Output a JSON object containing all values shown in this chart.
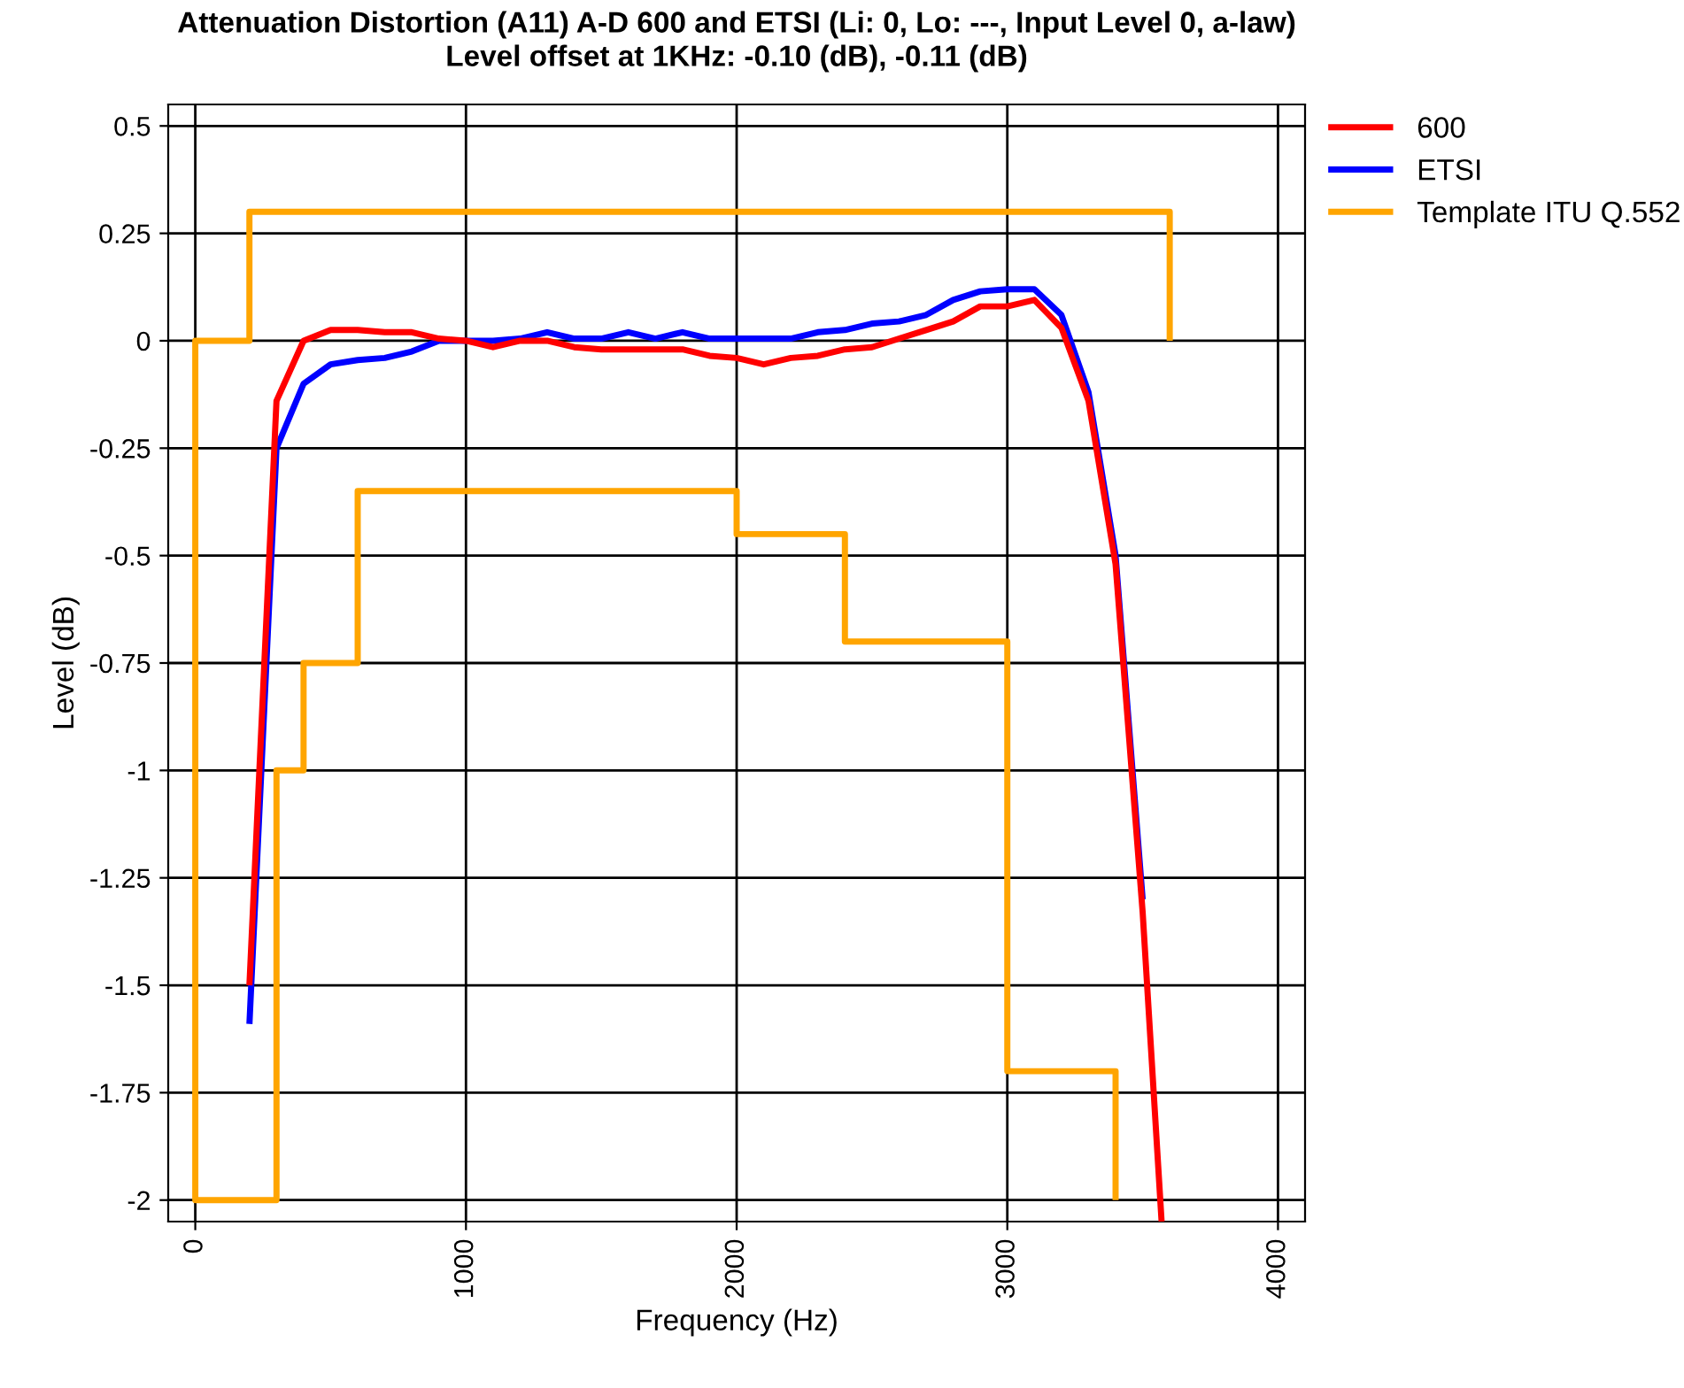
{
  "chart_data": {
    "type": "line",
    "title": "Attenuation Distortion (A11) A-D 600 and ETSI (Li: 0, Lo: ---, Input Level 0, a-law)",
    "subtitle": "Level offset at 1KHz: -0.10 (dB), -0.11 (dB)",
    "xlabel": "Frequency (Hz)",
    "ylabel": "Level (dB)",
    "xlim": [
      -100,
      4100
    ],
    "ylim": [
      -2.05,
      0.55
    ],
    "xticks": [
      0,
      1000,
      2000,
      3000,
      4000
    ],
    "yticks": [
      {
        "value": 0.5,
        "label": "0.5"
      },
      {
        "value": 0.25,
        "label": "0.25"
      },
      {
        "value": 0,
        "label": "0"
      },
      {
        "value": -0.25,
        "label": "-0.25"
      },
      {
        "value": -0.5,
        "label": "-0.5"
      },
      {
        "value": -0.75,
        "label": "-0.75"
      },
      {
        "value": -1,
        "label": "-1"
      },
      {
        "value": -1.25,
        "label": "-1.25"
      },
      {
        "value": -1.5,
        "label": "-1.5"
      },
      {
        "value": -1.75,
        "label": "-1.75"
      },
      {
        "value": -2,
        "label": "-2"
      }
    ],
    "grid": true,
    "legend": "top right",
    "series": [
      {
        "name": "600",
        "color": "#ff0000",
        "x": [
          200,
          300,
          400,
          500,
          600,
          700,
          800,
          900,
          1000,
          1100,
          1200,
          1300,
          1400,
          1500,
          1600,
          1700,
          1800,
          1900,
          2000,
          2100,
          2200,
          2300,
          2400,
          2500,
          2600,
          2700,
          2800,
          2900,
          3000,
          3100,
          3200,
          3300,
          3400,
          3500,
          3570
        ],
        "values": [
          -1.5,
          -0.14,
          0,
          0.025,
          0.025,
          0.02,
          0.02,
          0.005,
          0,
          -0.015,
          0,
          0,
          -0.015,
          -0.02,
          -0.02,
          -0.02,
          -0.02,
          -0.035,
          -0.04,
          -0.055,
          -0.04,
          -0.035,
          -0.02,
          -0.015,
          0.005,
          0.025,
          0.045,
          0.08,
          0.08,
          0.095,
          0.03,
          -0.14,
          -0.52,
          -1.33,
          -2.05
        ]
      },
      {
        "name": "ETSI",
        "color": "#0000ff",
        "x": [
          200,
          300,
          400,
          500,
          600,
          700,
          800,
          900,
          1000,
          1100,
          1200,
          1300,
          1400,
          1500,
          1600,
          1700,
          1800,
          1900,
          2000,
          2100,
          2200,
          2300,
          2400,
          2500,
          2600,
          2700,
          2800,
          2900,
          3000,
          3100,
          3200,
          3300,
          3400,
          3500
        ],
        "values": [
          -1.59,
          -0.25,
          -0.1,
          -0.055,
          -0.045,
          -0.04,
          -0.025,
          0,
          0,
          0,
          0.005,
          0.02,
          0.005,
          0.005,
          0.02,
          0.005,
          0.02,
          0.005,
          0.005,
          0.005,
          0.005,
          0.02,
          0.025,
          0.04,
          0.045,
          0.06,
          0.095,
          0.115,
          0.12,
          0.12,
          0.06,
          -0.12,
          -0.5,
          -1.3
        ]
      },
      {
        "name": "Template ITU Q.552",
        "color": "#ffa500",
        "x": [
          3400,
          3400,
          3000,
          3000,
          2400,
          2400,
          2000,
          2000,
          600,
          600,
          400,
          400,
          300,
          300,
          0,
          0,
          200,
          200,
          3600,
          3600
        ],
        "values": [
          -2,
          -1.7,
          -1.7,
          -0.7,
          -0.7,
          -0.45,
          -0.45,
          -0.35,
          -0.35,
          -0.75,
          -0.75,
          -1,
          -1,
          -2,
          -2,
          0,
          0,
          0.3,
          0.3,
          0
        ]
      }
    ]
  }
}
